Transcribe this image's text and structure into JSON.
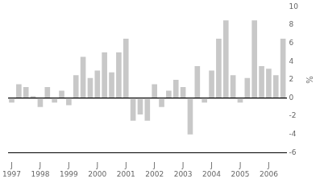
{
  "chart_data": {
    "type": "bar",
    "ylabel": "%",
    "categories": [
      "1997",
      null,
      null,
      null,
      "1998",
      null,
      null,
      null,
      "1999",
      null,
      null,
      null,
      "2000",
      null,
      null,
      null,
      "2001",
      null,
      null,
      null,
      "2002",
      null,
      null,
      null,
      "2003",
      null,
      null,
      null,
      "2004",
      null,
      null,
      null,
      "2005",
      null,
      null,
      null,
      "2006",
      null,
      null
    ],
    "values": [
      -0.5,
      1.5,
      1.2,
      0.2,
      -1.0,
      1.2,
      -0.5,
      0.8,
      -0.8,
      2.5,
      4.5,
      2.2,
      3.0,
      5.0,
      2.8,
      5.0,
      6.5,
      -2.5,
      -1.8,
      -2.5,
      1.5,
      -1.0,
      0.8,
      2.0,
      1.2,
      -4.0,
      3.5,
      -0.5,
      3.0,
      6.5,
      8.5,
      2.5,
      -0.5,
      2.2,
      8.5,
      3.5,
      3.2,
      2.5,
      6.5
    ],
    "color": "#c8c8c8",
    "ylim": [
      -6,
      10
    ],
    "yticks": [
      -6,
      -4,
      -2,
      0,
      2,
      4,
      6,
      8,
      10
    ],
    "annotations": [
      {
        "text": "J",
        "x": "1997"
      },
      {
        "text": "J",
        "x": "1998"
      },
      {
        "text": "J",
        "x": "1999"
      },
      {
        "text": "J",
        "x": "2000"
      },
      {
        "text": "J",
        "x": "2001"
      },
      {
        "text": "J",
        "x": "2002"
      },
      {
        "text": "J",
        "x": "2003"
      },
      {
        "text": "J",
        "x": "2004"
      },
      {
        "text": "J",
        "x": "2005"
      },
      {
        "text": "J",
        "x": "2006"
      }
    ],
    "grid": false
  }
}
